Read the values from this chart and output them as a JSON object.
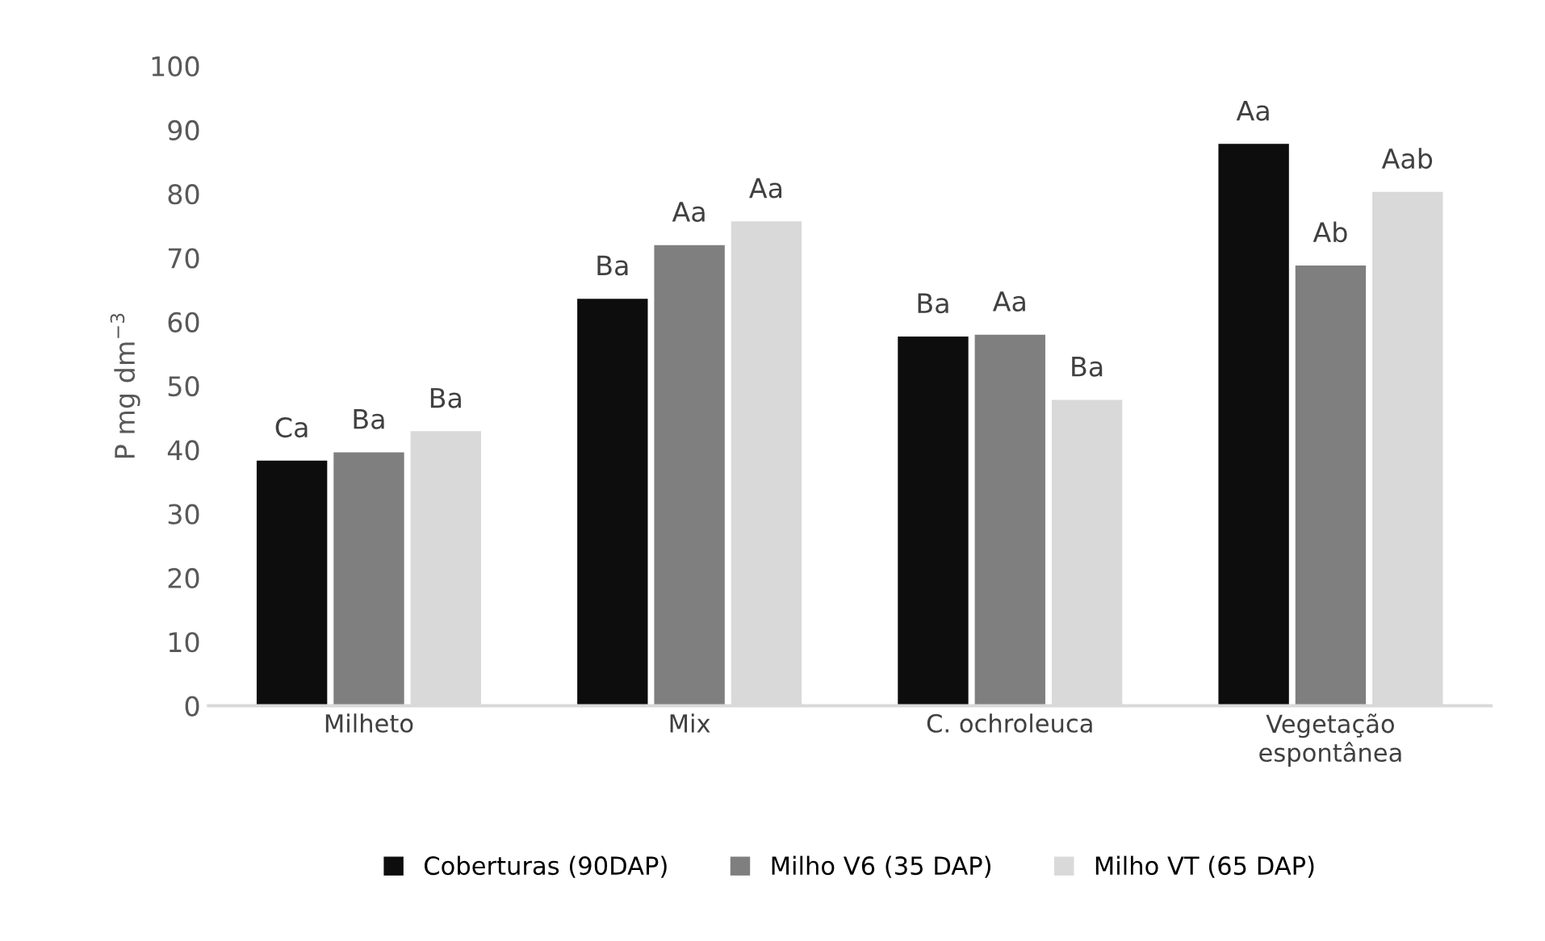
{
  "chart_data": {
    "type": "bar",
    "ylabel": "P mg dm$^{−3}$",
    "categories": [
      "Milheto",
      "Mix",
      "C. ochroleuca",
      "Vegetação espontânea"
    ],
    "series": [
      {
        "name": "Coberturas (90DAP)",
        "color": "#0d0d0d",
        "values": [
          38.3,
          63.6,
          57.7,
          87.8
        ],
        "value_labels": [
          "Ca",
          "Ba",
          "Ba",
          "Aa"
        ]
      },
      {
        "name": "Milho V6 (35 DAP)",
        "color": "#7f7f7f",
        "values": [
          39.6,
          72.0,
          58.0,
          68.8
        ],
        "value_labels": [
          "Ba",
          "Aa",
          "Aa",
          "Ab"
        ]
      },
      {
        "name": "Milho VT (65 DAP)",
        "color": "#d9d9d9",
        "values": [
          42.9,
          75.7,
          47.8,
          80.3
        ],
        "value_labels": [
          "Ba",
          "Aa",
          "Ba",
          "Aab"
        ]
      }
    ],
    "ylim": [
      0,
      100
    ],
    "yticks": [
      0,
      10,
      20,
      30,
      40,
      50,
      60,
      70,
      80,
      90,
      100
    ],
    "grid": false,
    "legend": "bottom"
  }
}
